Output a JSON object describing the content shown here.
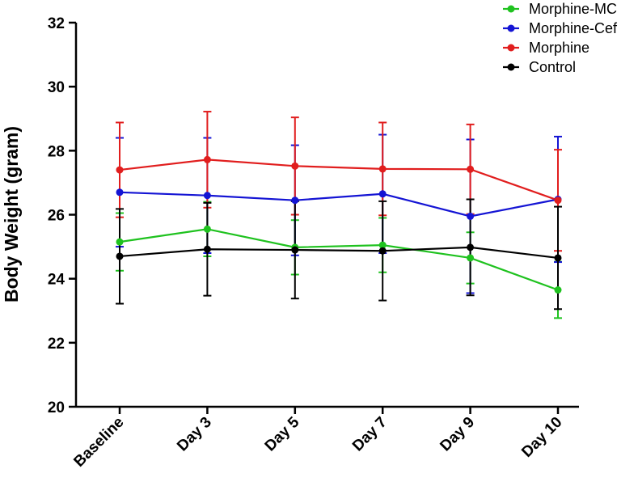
{
  "chart_data": {
    "type": "line",
    "title": "",
    "xlabel": "",
    "ylabel": "Body Weight (gram)",
    "categories": [
      "Baseline",
      "Day 3",
      "Day 5",
      "Day 7",
      "Day 9",
      "Day 10"
    ],
    "ylim": [
      20,
      32
    ],
    "yticks": [
      20,
      22,
      24,
      26,
      28,
      30,
      32
    ],
    "grid": false,
    "legend_position": "top-right",
    "series": [
      {
        "name": "Morphine-MC",
        "color": "#1fc21f",
        "values": [
          25.15,
          25.55,
          24.98,
          25.05,
          24.65,
          23.65
        ],
        "errors": [
          0.9,
          0.85,
          0.85,
          0.85,
          0.8,
          0.88
        ]
      },
      {
        "name": "Morphine-Cef",
        "color": "#1414d4",
        "values": [
          26.7,
          26.6,
          26.45,
          26.65,
          25.95,
          26.48
        ],
        "errors": [
          1.7,
          1.8,
          1.72,
          1.85,
          2.4,
          1.96
        ]
      },
      {
        "name": "Morphine",
        "color": "#e11e1e",
        "values": [
          27.4,
          27.72,
          27.52,
          27.43,
          27.42,
          26.45
        ],
        "errors": [
          1.48,
          1.5,
          1.52,
          1.45,
          1.4,
          1.58
        ]
      },
      {
        "name": "Control",
        "color": "#000000",
        "values": [
          24.7,
          24.92,
          24.9,
          24.87,
          24.98,
          24.65
        ],
        "errors": [
          1.48,
          1.45,
          1.52,
          1.55,
          1.5,
          1.6
        ]
      }
    ]
  }
}
